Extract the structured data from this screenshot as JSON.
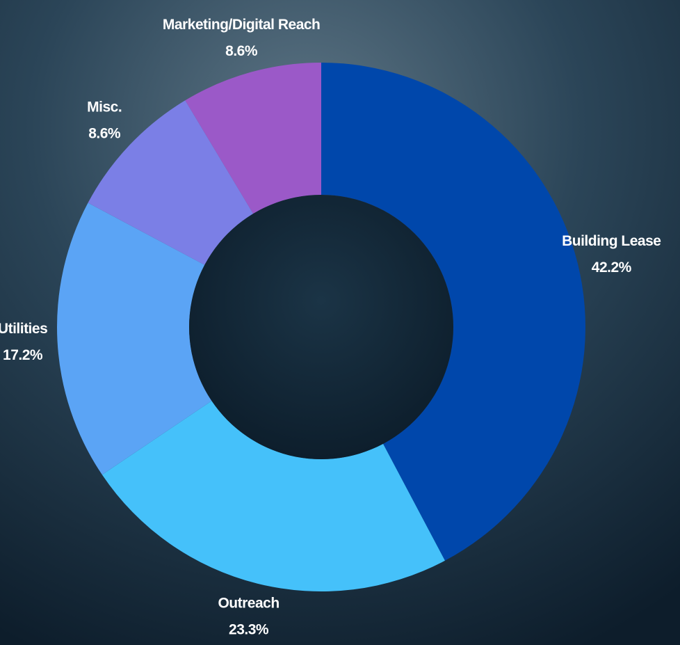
{
  "chart_data": {
    "type": "donut",
    "categories": [
      "Building Lease",
      "Outreach",
      "Utilities",
      "Misc.",
      "Marketing/Digital Reach"
    ],
    "values": [
      42.2,
      23.3,
      17.2,
      8.6,
      8.6
    ],
    "value_labels": [
      "42.2%",
      "23.3%",
      "17.2%",
      "8.6%",
      "8.6%"
    ],
    "colors": [
      "#0047ab",
      "#45c1fa",
      "#5ba4f5",
      "#7b7fe6",
      "#9b59c8"
    ]
  }
}
